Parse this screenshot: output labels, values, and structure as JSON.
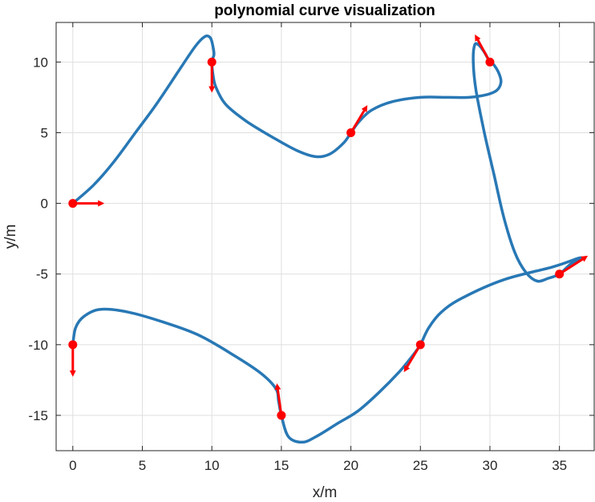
{
  "chart_data": {
    "type": "line",
    "title": "polynomial curve visualization",
    "xlabel": "x/m",
    "ylabel": "y/m",
    "xlim": [
      -1.2,
      37.5
    ],
    "ylim": [
      -17.5,
      12.8
    ],
    "xticks": [
      "0",
      "5",
      "10",
      "15",
      "20",
      "25",
      "30",
      "35"
    ],
    "xtick_values": [
      0,
      5,
      10,
      15,
      20,
      25,
      30,
      35
    ],
    "yticks": [
      "10",
      "5",
      "0",
      "-5",
      "-10",
      "-15"
    ],
    "ytick_values": [
      10,
      5,
      0,
      -5,
      -10,
      -15
    ],
    "grid": true,
    "colors": {
      "curve": "#2878b5",
      "waypoint": "#ff0000",
      "arrow": "#ff0000"
    },
    "curve": [
      [
        0,
        0
      ],
      [
        1.5,
        1.3
      ],
      [
        3,
        3
      ],
      [
        4.5,
        5
      ],
      [
        6,
        7
      ],
      [
        7.5,
        9.2
      ],
      [
        8.8,
        11.1
      ],
      [
        9.5,
        11.8
      ],
      [
        9.9,
        11.7
      ],
      [
        10.1,
        11
      ],
      [
        10.15,
        10.5
      ],
      [
        10,
        10
      ],
      [
        10.1,
        9
      ],
      [
        10.3,
        8.2
      ],
      [
        11,
        7
      ],
      [
        12.5,
        5.8
      ],
      [
        14.5,
        4.6
      ],
      [
        16.2,
        3.7
      ],
      [
        17.5,
        3.3
      ],
      [
        18.5,
        3.5
      ],
      [
        19.5,
        4.3
      ],
      [
        20,
        5
      ],
      [
        20.6,
        5.8
      ],
      [
        21.5,
        6.6
      ],
      [
        23,
        7.2
      ],
      [
        25,
        7.5
      ],
      [
        27,
        7.5
      ],
      [
        28.5,
        7.5
      ],
      [
        29.8,
        7.7
      ],
      [
        30.5,
        8
      ],
      [
        30.8,
        8.6
      ],
      [
        30.6,
        9.3
      ],
      [
        30.2,
        9.9
      ],
      [
        30,
        10
      ],
      [
        29.6,
        10.7
      ],
      [
        29.2,
        11.2
      ],
      [
        28.9,
        11.2
      ],
      [
        28.8,
        10
      ],
      [
        29,
        8
      ],
      [
        29.6,
        5
      ],
      [
        30.3,
        2
      ],
      [
        31,
        -1
      ],
      [
        31.8,
        -3.5
      ],
      [
        32.6,
        -4.9
      ],
      [
        33.4,
        -5.5
      ],
      [
        34.2,
        -5.3
      ],
      [
        35,
        -5
      ],
      [
        35.8,
        -4.3
      ],
      [
        36.5,
        -3.9
      ],
      [
        36.3,
        -3.9
      ],
      [
        34.5,
        -4.5
      ],
      [
        31,
        -5.4
      ],
      [
        28,
        -6.7
      ],
      [
        26.5,
        -7.7
      ],
      [
        25.6,
        -8.8
      ],
      [
        25,
        -10
      ],
      [
        24.5,
        -10.7
      ],
      [
        23.5,
        -11.9
      ],
      [
        22,
        -13.4
      ],
      [
        20.5,
        -14.7
      ],
      [
        19,
        -15.6
      ],
      [
        17.5,
        -16.5
      ],
      [
        16.5,
        -16.9
      ],
      [
        15.5,
        -16.5
      ],
      [
        15,
        -15
      ],
      [
        14.8,
        -14
      ],
      [
        14.6,
        -13.1
      ],
      [
        13.5,
        -12
      ],
      [
        11.5,
        -10.7
      ],
      [
        9,
        -9.3
      ],
      [
        6.5,
        -8.4
      ],
      [
        4,
        -7.7
      ],
      [
        2,
        -7.5
      ],
      [
        0.8,
        -8
      ],
      [
        0.2,
        -8.8
      ],
      [
        0,
        -10
      ]
    ],
    "waypoints": [
      {
        "x": 0,
        "y": 0,
        "dx": 2.1,
        "dy": 0
      },
      {
        "x": 10,
        "y": 10,
        "dx": 0,
        "dy": -2.0
      },
      {
        "x": 20,
        "y": 5,
        "dx": 1.1,
        "dy": 1.8
      },
      {
        "x": 30,
        "y": 10,
        "dx": -1.0,
        "dy": 1.8
      },
      {
        "x": 35,
        "y": -5,
        "dx": 1.9,
        "dy": 1.2
      },
      {
        "x": 25,
        "y": -10,
        "dx": -1.1,
        "dy": -1.8
      },
      {
        "x": 15,
        "y": -15,
        "dx": -0.3,
        "dy": 2.1
      },
      {
        "x": 0,
        "y": -10,
        "dx": 0,
        "dy": -2.1
      }
    ]
  }
}
